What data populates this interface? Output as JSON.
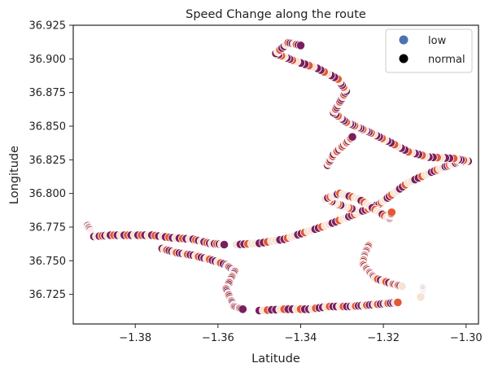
{
  "chart_data": {
    "type": "scatter",
    "title": "Speed Change along the route",
    "xlabel": "Latitude",
    "ylabel": "Longitude",
    "xlim": [
      -1.395,
      -1.297
    ],
    "ylim": [
      36.703,
      36.925
    ],
    "xticks": [
      -1.38,
      -1.36,
      -1.34,
      -1.32,
      -1.3
    ],
    "xtick_labels": [
      "−1.38",
      "−1.36",
      "−1.34",
      "−1.32",
      "−1.30"
    ],
    "yticks": [
      36.725,
      36.75,
      36.775,
      36.8,
      36.825,
      36.85,
      36.875,
      36.9,
      36.925
    ],
    "ytick_labels": [
      "36.725",
      "36.750",
      "36.775",
      "36.800",
      "36.825",
      "36.850",
      "36.875",
      "36.900",
      "36.925"
    ],
    "grid": false,
    "legend": {
      "placement": "top-right",
      "entries": [
        {
          "label": "low",
          "color": "#4c72b0"
        },
        {
          "label": "normal",
          "color": "#000000"
        }
      ]
    },
    "point_palette": {
      "low": "#4c72b0",
      "normal": "#1a0a1c",
      "mid": "#e35933",
      "high": "#f6e3d4",
      "deep": "#7b1f5c"
    },
    "route_segments": [
      {
        "color_cycle": [
          "#7b1f5c",
          "#f6e3d4",
          "#7b1f5c",
          "#e35933"
        ],
        "points": [
          [
            -1.3915,
            36.776
          ],
          [
            -1.3905,
            36.771
          ],
          [
            -1.39,
            36.768
          ],
          [
            -1.386,
            36.769
          ],
          [
            -1.381,
            36.769
          ],
          [
            -1.376,
            36.769
          ],
          [
            -1.371,
            36.767
          ],
          [
            -1.366,
            36.766
          ],
          [
            -1.362,
            36.763
          ],
          [
            -1.3585,
            36.762
          ]
        ]
      },
      {
        "color_cycle": [
          "#f6e3d4",
          "#7b1f5c",
          "#7b1f5c",
          "#e35933",
          "#f6e3d4"
        ],
        "points": [
          [
            -1.3555,
            36.762
          ],
          [
            -1.35,
            36.763
          ],
          [
            -1.344,
            36.766
          ],
          [
            -1.339,
            36.771
          ],
          [
            -1.334,
            36.776
          ],
          [
            -1.329,
            36.782
          ],
          [
            -1.325,
            36.787
          ],
          [
            -1.321,
            36.792
          ],
          [
            -1.318,
            36.799
          ],
          [
            -1.314,
            36.808
          ],
          [
            -1.309,
            36.815
          ],
          [
            -1.305,
            36.82
          ],
          [
            -1.302,
            36.823
          ],
          [
            -1.2995,
            36.824
          ]
        ]
      },
      {
        "color_cycle": [
          "#7b1f5c",
          "#f6e3d4",
          "#e35933",
          "#7b1f5c"
        ],
        "points": [
          [
            -1.2995,
            36.824
          ],
          [
            -1.303,
            36.826
          ],
          [
            -1.309,
            36.827
          ],
          [
            -1.314,
            36.831
          ],
          [
            -1.319,
            36.839
          ],
          [
            -1.323,
            36.845
          ],
          [
            -1.326,
            36.849
          ],
          [
            -1.329,
            36.853
          ],
          [
            -1.332,
            36.86
          ],
          [
            -1.3305,
            36.868
          ],
          [
            -1.329,
            36.876
          ],
          [
            -1.331,
            36.885
          ],
          [
            -1.336,
            36.893
          ],
          [
            -1.342,
            36.899
          ],
          [
            -1.346,
            36.904
          ],
          [
            -1.343,
            36.912
          ],
          [
            -1.34,
            36.91
          ]
        ]
      },
      {
        "color_cycle": [
          "#7b1f5c",
          "#f6e3d4",
          "#e35933"
        ],
        "points": [
          [
            -1.3335,
            36.821
          ],
          [
            -1.332,
            36.829
          ],
          [
            -1.3295,
            36.836
          ],
          [
            -1.3275,
            36.842
          ]
        ]
      },
      {
        "color_cycle": [
          "#f6e3d4",
          "#7b1f5c",
          "#e35933",
          "#f6e3d4"
        ],
        "points": [
          [
            -1.327,
            36.788
          ],
          [
            -1.331,
            36.792
          ],
          [
            -1.334,
            36.796
          ],
          [
            -1.3305,
            36.8
          ],
          [
            -1.326,
            36.796
          ],
          [
            -1.322,
            36.788
          ],
          [
            -1.3185,
            36.781
          ],
          [
            -1.318,
            36.786
          ]
        ]
      },
      {
        "color_cycle": [
          "#7b1f5c",
          "#f6e3d4",
          "#e35933",
          "#7b1f5c"
        ],
        "points": [
          [
            -1.3735,
            36.759
          ],
          [
            -1.37,
            36.756
          ],
          [
            -1.366,
            36.754
          ],
          [
            -1.362,
            36.751
          ],
          [
            -1.358,
            36.747
          ],
          [
            -1.356,
            36.742
          ],
          [
            -1.357,
            36.736
          ],
          [
            -1.358,
            36.729
          ],
          [
            -1.357,
            36.722
          ],
          [
            -1.356,
            36.716
          ],
          [
            -1.354,
            36.714
          ]
        ]
      },
      {
        "color_cycle": [
          "#7b1f5c",
          "#f6e3d4",
          "#e35933",
          "#7b1f5c"
        ],
        "points": [
          [
            -1.35,
            36.713
          ],
          [
            -1.344,
            36.714
          ],
          [
            -1.338,
            36.714
          ],
          [
            -1.333,
            36.716
          ],
          [
            -1.328,
            36.716
          ],
          [
            -1.324,
            36.717
          ],
          [
            -1.32,
            36.718
          ],
          [
            -1.3165,
            36.719
          ]
        ]
      },
      {
        "color_cycle": [
          "#f6e3d4",
          "#e35933",
          "#7b1f5c"
        ],
        "points": [
          [
            -1.3235,
            36.762
          ],
          [
            -1.3245,
            36.755
          ],
          [
            -1.325,
            36.748
          ],
          [
            -1.3235,
            36.742
          ],
          [
            -1.322,
            36.737
          ],
          [
            -1.318,
            36.733
          ],
          [
            -1.3155,
            36.731
          ]
        ]
      },
      {
        "color_cycle": [
          "#f6e3d4",
          "#7b1f5c"
        ],
        "points": [
          [
            -1.3105,
            36.73
          ],
          [
            -1.3105,
            36.726
          ],
          [
            -1.311,
            36.723
          ]
        ]
      }
    ]
  }
}
